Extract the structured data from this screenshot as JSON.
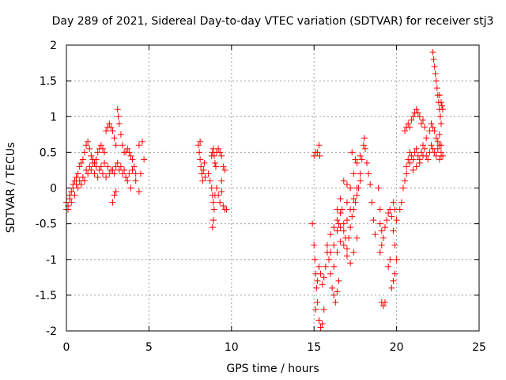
{
  "chart_data": {
    "type": "scatter",
    "title": "Day 289 of 2021, Sidereal Day-to-day VTEC variation (SDTVAR) for receiver stj3",
    "xlabel": "GPS time / hours",
    "ylabel": "SDTVAR / TECUs",
    "xlim": [
      0,
      25
    ],
    "ylim": [
      -2,
      2
    ],
    "xticks": [
      0,
      5,
      10,
      15,
      20,
      25
    ],
    "xtick_labels": [
      "0",
      "5",
      "10",
      "15",
      "20",
      "25"
    ],
    "yticks": [
      -2,
      -1.5,
      -1,
      -0.5,
      0,
      0.5,
      1,
      1.5,
      2
    ],
    "ytick_labels": [
      "-2",
      "-1.5",
      "-1",
      "-0.5",
      "0",
      "0.5",
      "1",
      "1.5",
      "2"
    ],
    "grid": true,
    "marker": "+",
    "color": "#ff0000",
    "series": [
      {
        "name": "SDTVAR",
        "points": [
          [
            0.0,
            -0.3
          ],
          [
            0.1,
            -0.25
          ],
          [
            0.2,
            -0.15
          ],
          [
            0.3,
            -0.05
          ],
          [
            0.4,
            0.05
          ],
          [
            0.5,
            0.1
          ],
          [
            0.6,
            0.15
          ],
          [
            0.7,
            0.2
          ],
          [
            0.8,
            0.3
          ],
          [
            0.9,
            0.35
          ],
          [
            1.0,
            0.4
          ],
          [
            1.1,
            0.5
          ],
          [
            1.2,
            0.6
          ],
          [
            1.3,
            0.65
          ],
          [
            1.4,
            0.55
          ],
          [
            1.5,
            0.45
          ],
          [
            1.6,
            0.4
          ],
          [
            1.7,
            0.35
          ],
          [
            1.8,
            0.4
          ],
          [
            1.9,
            0.5
          ],
          [
            2.0,
            0.55
          ],
          [
            2.1,
            0.6
          ],
          [
            2.2,
            0.55
          ],
          [
            2.3,
            0.5
          ],
          [
            2.4,
            0.8
          ],
          [
            2.5,
            0.85
          ],
          [
            2.6,
            0.9
          ],
          [
            2.7,
            0.85
          ],
          [
            2.8,
            0.8
          ],
          [
            2.9,
            0.7
          ],
          [
            3.0,
            0.6
          ],
          [
            3.1,
            1.1
          ],
          [
            3.15,
            1.0
          ],
          [
            3.2,
            0.9
          ],
          [
            3.3,
            0.75
          ],
          [
            3.4,
            0.6
          ],
          [
            3.5,
            0.5
          ],
          [
            3.6,
            0.5
          ],
          [
            3.7,
            0.55
          ],
          [
            3.8,
            0.5
          ],
          [
            3.9,
            0.45
          ],
          [
            4.0,
            0.4
          ],
          [
            4.1,
            0.3
          ],
          [
            4.2,
            0.2
          ],
          [
            4.4,
            0.6
          ],
          [
            4.6,
            0.65
          ],
          [
            4.7,
            0.4
          ],
          [
            0.0,
            -0.2
          ],
          [
            0.2,
            -0.1
          ],
          [
            0.4,
            0.0
          ],
          [
            0.6,
            0.05
          ],
          [
            0.8,
            0.1
          ],
          [
            1.0,
            0.15
          ],
          [
            1.2,
            0.25
          ],
          [
            1.4,
            0.3
          ],
          [
            1.6,
            0.35
          ],
          [
            1.8,
            0.3
          ],
          [
            2.0,
            0.25
          ],
          [
            2.2,
            0.2
          ],
          [
            2.4,
            0.15
          ],
          [
            2.6,
            0.2
          ],
          [
            2.8,
            0.25
          ],
          [
            3.0,
            0.3
          ],
          [
            3.2,
            0.25
          ],
          [
            3.4,
            0.2
          ],
          [
            3.6,
            0.15
          ],
          [
            3.8,
            0.2
          ],
          [
            4.0,
            0.25
          ],
          [
            4.2,
            0.1
          ],
          [
            4.4,
            -0.05
          ],
          [
            4.5,
            0.2
          ],
          [
            0.1,
            -0.3
          ],
          [
            0.3,
            -0.2
          ],
          [
            0.5,
            -0.1
          ],
          [
            0.7,
            0.0
          ],
          [
            0.9,
            0.05
          ],
          [
            1.1,
            0.1
          ],
          [
            1.3,
            0.2
          ],
          [
            1.5,
            0.25
          ],
          [
            1.7,
            0.2
          ],
          [
            1.9,
            0.15
          ],
          [
            2.1,
            0.3
          ],
          [
            2.3,
            0.35
          ],
          [
            2.5,
            0.3
          ],
          [
            2.7,
            0.25
          ],
          [
            2.9,
            0.2
          ],
          [
            3.1,
            0.35
          ],
          [
            3.3,
            0.3
          ],
          [
            3.5,
            0.25
          ],
          [
            3.7,
            0.1
          ],
          [
            3.9,
            0.0
          ],
          [
            2.9,
            -0.1
          ],
          [
            3.0,
            -0.05
          ],
          [
            2.8,
            -0.2
          ],
          [
            8.0,
            0.6
          ],
          [
            8.05,
            0.5
          ],
          [
            8.1,
            0.4
          ],
          [
            8.15,
            0.3
          ],
          [
            8.2,
            0.2
          ],
          [
            8.25,
            0.1
          ],
          [
            8.3,
            0.25
          ],
          [
            8.35,
            0.35
          ],
          [
            8.4,
            0.15
          ],
          [
            8.1,
            0.65
          ],
          [
            8.8,
            0.45
          ],
          [
            8.85,
            0.5
          ],
          [
            8.9,
            0.55
          ],
          [
            8.95,
            0.45
          ],
          [
            9.0,
            0.35
          ],
          [
            9.05,
            0.3
          ],
          [
            9.1,
            0.5
          ],
          [
            9.2,
            0.55
          ],
          [
            9.3,
            0.5
          ],
          [
            9.4,
            0.45
          ],
          [
            9.5,
            0.3
          ],
          [
            9.6,
            0.25
          ],
          [
            8.6,
            0.2
          ],
          [
            8.7,
            0.1
          ],
          [
            8.8,
            0.0
          ],
          [
            8.85,
            -0.1
          ],
          [
            8.9,
            -0.2
          ],
          [
            8.95,
            -0.3
          ],
          [
            8.9,
            -0.45
          ],
          [
            8.85,
            -0.55
          ],
          [
            9.0,
            -0.1
          ],
          [
            9.1,
            0.0
          ],
          [
            9.2,
            -0.1
          ],
          [
            9.3,
            -0.2
          ],
          [
            9.4,
            -0.05
          ],
          [
            9.5,
            -0.25
          ],
          [
            9.6,
            -0.3
          ],
          [
            9.7,
            -0.3
          ],
          [
            9.4,
            0.1
          ],
          [
            15.0,
            0.45
          ],
          [
            15.1,
            0.5
          ],
          [
            15.2,
            0.5
          ],
          [
            15.3,
            0.6
          ],
          [
            15.35,
            0.45
          ],
          [
            14.9,
            -0.5
          ],
          [
            15.0,
            -0.8
          ],
          [
            15.05,
            -1.0
          ],
          [
            15.1,
            -1.2
          ],
          [
            15.15,
            -1.4
          ],
          [
            15.2,
            -1.6
          ],
          [
            15.1,
            -1.7
          ],
          [
            15.3,
            -1.85
          ],
          [
            15.4,
            -1.95
          ],
          [
            15.5,
            -1.9
          ],
          [
            15.6,
            -1.7
          ],
          [
            15.2,
            -1.3
          ],
          [
            15.3,
            -1.1
          ],
          [
            15.4,
            -1.2
          ],
          [
            15.5,
            -1.35
          ],
          [
            15.6,
            -1.25
          ],
          [
            15.7,
            -1.1
          ],
          [
            15.8,
            -0.9
          ],
          [
            15.9,
            -1.0
          ],
          [
            16.0,
            -1.2
          ],
          [
            16.1,
            -1.4
          ],
          [
            16.2,
            -1.5
          ],
          [
            16.3,
            -1.6
          ],
          [
            16.0,
            -0.9
          ],
          [
            16.2,
            -0.8
          ],
          [
            16.4,
            -0.6
          ],
          [
            16.5,
            -0.5
          ],
          [
            16.6,
            -0.35
          ],
          [
            16.7,
            -0.3
          ],
          [
            16.8,
            -0.5
          ],
          [
            16.9,
            -0.7
          ],
          [
            17.0,
            -0.85
          ],
          [
            17.1,
            -0.7
          ],
          [
            17.2,
            -0.55
          ],
          [
            17.3,
            -0.4
          ],
          [
            17.4,
            -0.3
          ],
          [
            17.5,
            -0.2
          ],
          [
            17.6,
            -0.1
          ],
          [
            17.7,
            0.0
          ],
          [
            17.8,
            0.2
          ],
          [
            17.9,
            0.4
          ],
          [
            18.0,
            0.6
          ],
          [
            18.05,
            0.7
          ],
          [
            18.1,
            0.55
          ],
          [
            18.2,
            0.35
          ],
          [
            18.3,
            0.2
          ],
          [
            18.4,
            0.05
          ],
          [
            18.5,
            -0.2
          ],
          [
            18.6,
            -0.45
          ],
          [
            18.7,
            -0.65
          ],
          [
            16.2,
            -1.1
          ],
          [
            16.4,
            -0.9
          ],
          [
            16.6,
            -0.75
          ],
          [
            16.8,
            -0.6
          ],
          [
            17.0,
            -0.45
          ],
          [
            17.2,
            -0.3
          ],
          [
            17.4,
            -0.15
          ],
          [
            17.6,
            0.0
          ],
          [
            17.8,
            0.1
          ],
          [
            17.0,
            -0.2
          ],
          [
            17.2,
            0.0
          ],
          [
            17.4,
            0.2
          ],
          [
            17.6,
            0.35
          ],
          [
            17.8,
            0.45
          ],
          [
            17.3,
            0.5
          ],
          [
            17.5,
            0.4
          ],
          [
            16.8,
            0.1
          ],
          [
            17.0,
            0.05
          ],
          [
            16.6,
            -0.15
          ],
          [
            16.4,
            -0.3
          ],
          [
            15.8,
            -0.8
          ],
          [
            16.0,
            -0.65
          ],
          [
            16.2,
            -0.55
          ],
          [
            16.4,
            -0.45
          ],
          [
            16.6,
            -0.55
          ],
          [
            16.8,
            -0.8
          ],
          [
            17.0,
            -0.95
          ],
          [
            17.2,
            -1.05
          ],
          [
            17.4,
            -0.9
          ],
          [
            17.6,
            -0.7
          ],
          [
            16.5,
            -1.3
          ],
          [
            16.4,
            -1.45
          ],
          [
            18.9,
            0.0
          ],
          [
            19.0,
            -0.3
          ],
          [
            19.0,
            -0.5
          ],
          [
            19.1,
            -0.6
          ],
          [
            19.2,
            -0.7
          ],
          [
            19.3,
            -0.55
          ],
          [
            19.4,
            -0.45
          ],
          [
            19.5,
            -0.35
          ],
          [
            19.6,
            -0.3
          ],
          [
            19.7,
            -0.4
          ],
          [
            19.8,
            -0.6
          ],
          [
            19.9,
            -0.8
          ],
          [
            20.0,
            -1.0
          ],
          [
            19.9,
            -1.2
          ],
          [
            19.8,
            -1.3
          ],
          [
            19.7,
            -1.4
          ],
          [
            19.8,
            -0.2
          ],
          [
            19.9,
            -0.3
          ],
          [
            20.0,
            -0.45
          ],
          [
            19.1,
            -0.8
          ],
          [
            19.0,
            -0.9
          ],
          [
            19.1,
            -1.6
          ],
          [
            19.2,
            -1.65
          ],
          [
            19.3,
            -1.6
          ],
          [
            19.5,
            -1.1
          ],
          [
            19.6,
            -1.0
          ],
          [
            20.2,
            -0.3
          ],
          [
            20.3,
            -0.2
          ],
          [
            20.4,
            0.0
          ],
          [
            20.5,
            0.1
          ],
          [
            20.6,
            0.3
          ],
          [
            20.7,
            0.4
          ],
          [
            20.8,
            0.5
          ],
          [
            20.9,
            0.45
          ],
          [
            21.0,
            0.4
          ],
          [
            21.1,
            0.5
          ],
          [
            21.2,
            0.55
          ],
          [
            21.3,
            0.45
          ],
          [
            21.4,
            0.4
          ],
          [
            21.5,
            0.5
          ],
          [
            21.6,
            0.6
          ],
          [
            21.7,
            0.55
          ],
          [
            21.8,
            0.45
          ],
          [
            21.9,
            0.4
          ],
          [
            22.0,
            0.5
          ],
          [
            22.1,
            0.6
          ],
          [
            22.2,
            0.55
          ],
          [
            22.3,
            0.5
          ],
          [
            22.4,
            0.45
          ],
          [
            22.5,
            0.55
          ],
          [
            22.6,
            0.6
          ],
          [
            22.7,
            0.5
          ],
          [
            22.8,
            0.45
          ],
          [
            20.6,
            0.2
          ],
          [
            20.8,
            0.35
          ],
          [
            21.0,
            0.25
          ],
          [
            21.2,
            0.3
          ],
          [
            21.4,
            0.35
          ],
          [
            21.6,
            0.45
          ],
          [
            21.8,
            0.7
          ],
          [
            22.0,
            0.8
          ],
          [
            22.1,
            0.9
          ],
          [
            22.2,
            0.85
          ],
          [
            22.3,
            0.8
          ],
          [
            22.4,
            0.7
          ],
          [
            22.5,
            0.65
          ],
          [
            22.6,
            0.75
          ],
          [
            22.7,
            0.6
          ],
          [
            20.5,
            0.8
          ],
          [
            20.6,
            0.85
          ],
          [
            20.7,
            0.9
          ],
          [
            20.8,
            0.85
          ],
          [
            20.9,
            0.95
          ],
          [
            21.0,
            1.0
          ],
          [
            21.1,
            1.05
          ],
          [
            21.2,
            1.1
          ],
          [
            21.3,
            1.05
          ],
          [
            21.4,
            1.0
          ],
          [
            21.5,
            0.9
          ],
          [
            21.6,
            0.95
          ],
          [
            21.7,
            0.85
          ],
          [
            22.2,
            1.9
          ],
          [
            22.25,
            1.8
          ],
          [
            22.3,
            1.7
          ],
          [
            22.35,
            1.6
          ],
          [
            22.4,
            1.5
          ],
          [
            22.45,
            1.4
          ],
          [
            22.5,
            1.3
          ],
          [
            22.55,
            1.2
          ],
          [
            22.6,
            1.1
          ],
          [
            22.65,
            1.0
          ],
          [
            22.7,
            0.9
          ],
          [
            22.6,
            1.3
          ],
          [
            22.7,
            1.2
          ],
          [
            22.8,
            1.1
          ],
          [
            22.6,
            0.4
          ],
          [
            22.7,
            0.45
          ],
          [
            22.75,
            1.15
          ]
        ]
      }
    ]
  }
}
